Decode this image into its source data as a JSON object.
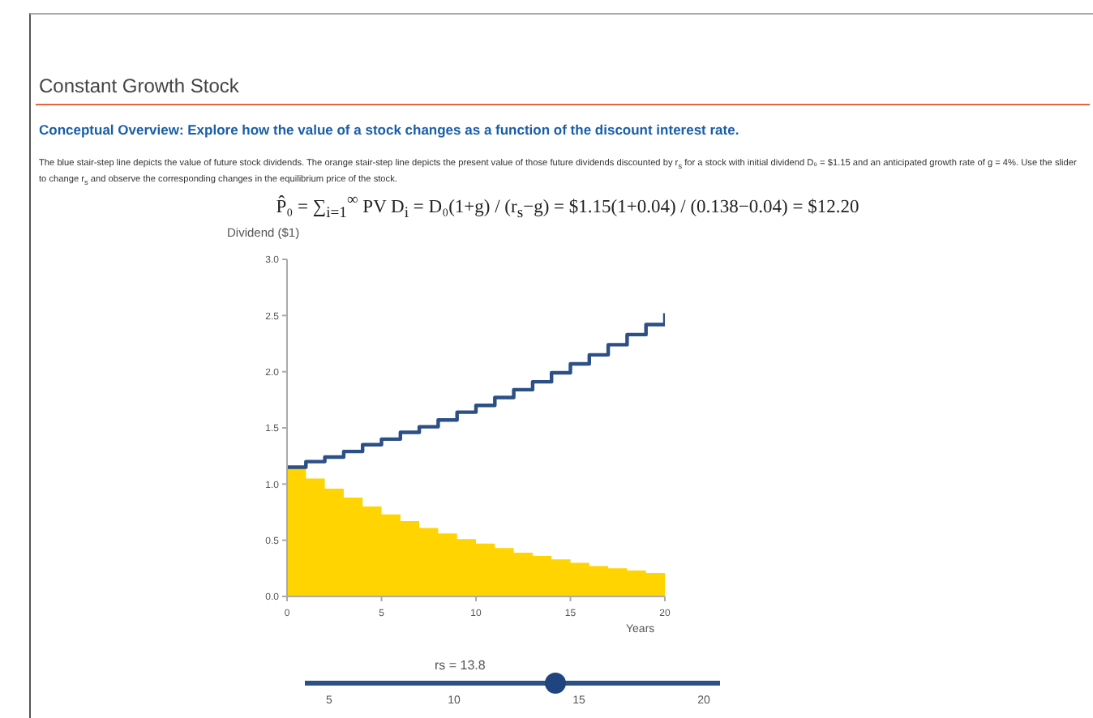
{
  "chart_data": {
    "type": "step",
    "title": "Constant Growth Stock",
    "subtitle": "Conceptual Overview: Explore how the value of a stock changes as a function of the discount interest rate.",
    "annotations": [
      "The blue stair-step line depicts the value of future stock dividends. The orange stair-step line depicts the present value of those future dividends discounted by r$_{s}$ for a stock with initial dividend D₀ = $1.15 and an anticipated growth rate of g = 4%. Use the slider to change r$_{s}$ and observe the corresponding changes in the equilibrium price of the stock.",
      "P̂₀ = ∑$_{i=1}$$^{∞}$ PV D$_{i}$ = D₀(1+g) / (r$_{s}$−g) = $1.15(1+0.04) / (0.138−0.04) = $12.20",
      "rs = 13.8",
      "5",
      "10",
      "15",
      "20"
    ],
    "xlabel": "Years",
    "ylabel": "Dividend ($1)",
    "x": [
      0,
      1,
      2,
      3,
      4,
      5,
      6,
      7,
      8,
      9,
      10,
      11,
      12,
      13,
      14,
      15,
      16,
      17,
      18,
      19,
      20
    ],
    "series": [
      {
        "color": "#2c4f86",
        "values": [
          1.15,
          1.2,
          1.24,
          1.29,
          1.35,
          1.4,
          1.46,
          1.51,
          1.57,
          1.64,
          1.7,
          1.77,
          1.84,
          1.91,
          1.99,
          2.07,
          2.15,
          2.24,
          2.33,
          2.42,
          2.52
        ]
      },
      {
        "type": "area",
        "color": "#ffd400",
        "values": [
          1.15,
          1.05,
          0.96,
          0.88,
          0.8,
          0.73,
          0.67,
          0.61,
          0.56,
          0.51,
          0.47,
          0.43,
          0.39,
          0.36,
          0.33,
          0.3,
          0.27,
          0.25,
          0.23,
          0.21,
          0.19
        ]
      }
    ],
    "xlim": [
      0,
      20
    ],
    "xticks": [
      0,
      5,
      10,
      15,
      20
    ],
    "ylim": [
      0,
      3
    ],
    "yticks": [
      {
        "value": 0,
        "label": "0.0"
      },
      {
        "value": 0.5,
        "label": "0.5"
      },
      {
        "value": 1,
        "label": "1.0"
      },
      {
        "value": 1.5,
        "label": "1.5"
      },
      {
        "value": 2,
        "label": "2.0"
      },
      {
        "value": 2.5,
        "label": "2.5"
      },
      {
        "value": 3,
        "label": "3.0"
      }
    ],
    "grid": false,
    "legend": false
  }
}
